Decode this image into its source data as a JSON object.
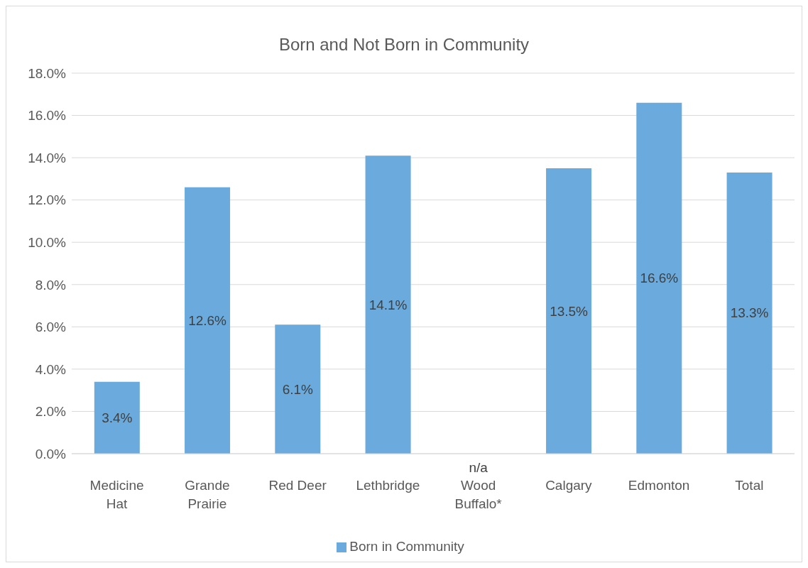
{
  "chart_data": {
    "type": "bar",
    "title": "Born and Not Born in Community",
    "categories": [
      "Medicine Hat",
      "Grande Prairie",
      "Red Deer",
      "Lethbridge",
      "Wood Buffalo*",
      "Calgary",
      "Edmonton",
      "Total"
    ],
    "series": [
      {
        "name": "Born in Community",
        "color": "#6aaadc",
        "values": [
          3.4,
          12.6,
          6.1,
          14.1,
          null,
          13.5,
          16.6,
          13.3
        ],
        "value_labels": [
          "3.4%",
          "12.6%",
          "6.1%",
          "14.1%",
          "n/a",
          "13.5%",
          "16.6%",
          "13.3%"
        ]
      }
    ],
    "ylim": [
      0,
      18
    ],
    "yticks": [
      {
        "value": 0,
        "label": "0.0%"
      },
      {
        "value": 2,
        "label": "2.0%"
      },
      {
        "value": 4,
        "label": "4.0%"
      },
      {
        "value": 6,
        "label": "6.0%"
      },
      {
        "value": 8,
        "label": "8.0%"
      },
      {
        "value": 10,
        "label": "10.0%"
      },
      {
        "value": 12,
        "label": "12.0%"
      },
      {
        "value": 14,
        "label": "14.0%"
      },
      {
        "value": 16,
        "label": "16.0%"
      },
      {
        "value": 18,
        "label": "18.0%"
      }
    ],
    "grid": "y",
    "legend": "bottom"
  }
}
